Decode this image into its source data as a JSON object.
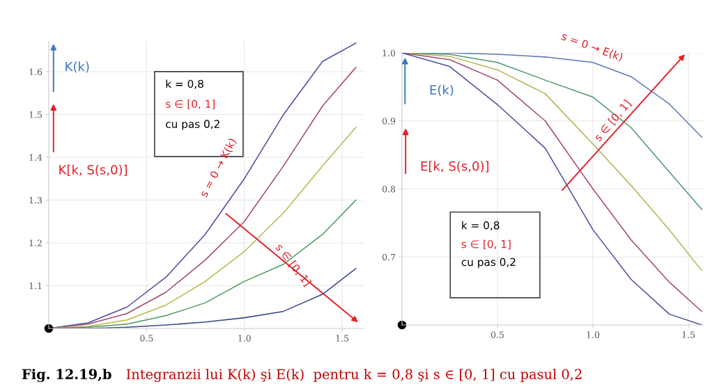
{
  "chart_data": [
    {
      "type": "line",
      "x": [
        0,
        0.2,
        0.4,
        0.6,
        0.8,
        1.0,
        1.2,
        1.4,
        1.57
      ],
      "series": [
        {
          "color": "#4a4fa0",
          "values": [
            1.0,
            1.013,
            1.05,
            1.12,
            1.22,
            1.35,
            1.5,
            1.624,
            1.667
          ]
        },
        {
          "color": "#a04a6e",
          "values": [
            1.0,
            1.01,
            1.035,
            1.085,
            1.16,
            1.25,
            1.38,
            1.52,
            1.61
          ]
        },
        {
          "color": "#b8b84a",
          "values": [
            1.0,
            1.005,
            1.02,
            1.055,
            1.11,
            1.18,
            1.27,
            1.38,
            1.47
          ]
        },
        {
          "color": "#4a9a5a",
          "values": [
            1.0,
            1.003,
            1.01,
            1.03,
            1.06,
            1.11,
            1.15,
            1.22,
            1.3
          ]
        },
        {
          "color": "#3a4a8a",
          "values": [
            1.0,
            1.0,
            1.003,
            1.008,
            1.015,
            1.025,
            1.04,
            1.08,
            1.14
          ]
        }
      ],
      "xlim": [
        0,
        1.61
      ],
      "ylim": [
        1.0,
        1.67
      ],
      "xticks": [
        {
          "value": 0.5,
          "label": "0.5"
        },
        {
          "value": 1.0,
          "label": "1.0"
        },
        {
          "value": 1.5,
          "label": "1.5"
        }
      ],
      "yticks": [
        1.1,
        1.2,
        1.3,
        1.4,
        1.5,
        1.6
      ],
      "grid": true,
      "annotations": [
        "K(k)",
        "K[k, S(s,0)]",
        "k = 0,8",
        "s ∈ [0, 1]",
        "cu pas 0,2",
        "s = 0 → K(k)",
        "s ∈ [0, 1]",
        "Fig. 12.19,b",
        "Integranzii lui K(k) şi E(k)  pentru k = 0,8 şi s ∈ [0, 1] cu pasul 0,2"
      ]
    },
    {
      "type": "line",
      "x": [
        0,
        0.25,
        0.5,
        0.75,
        1.0,
        1.2,
        1.4,
        1.57
      ],
      "series": [
        {
          "color": "#5a7ab0",
          "values": [
            1.0,
            1.0,
            0.998,
            0.994,
            0.986,
            0.965,
            0.925,
            0.876
          ]
        },
        {
          "color": "#4a9a6a",
          "values": [
            1.0,
            0.998,
            0.986,
            0.96,
            0.935,
            0.89,
            0.825,
            0.77
          ]
        },
        {
          "color": "#b8b050",
          "values": [
            1.0,
            0.995,
            0.975,
            0.94,
            0.866,
            0.805,
            0.74,
            0.68
          ]
        },
        {
          "color": "#a04a6e",
          "values": [
            1.0,
            0.99,
            0.96,
            0.9,
            0.8,
            0.725,
            0.663,
            0.62
          ]
        },
        {
          "color": "#4a4fa0",
          "values": [
            1.0,
            0.98,
            0.924,
            0.86,
            0.74,
            0.667,
            0.616,
            0.6
          ]
        }
      ],
      "xlim": [
        0,
        1.58
      ],
      "ylim": [
        0.6,
        1.0
      ],
      "xticks": [
        {
          "value": 0.5,
          "label": "0.5"
        },
        {
          "value": 1.0,
          "label": "1.0"
        },
        {
          "value": 1.5,
          "label": "1.5"
        }
      ],
      "yticks": [
        0.7,
        0.8,
        0.9,
        {
          "value": 1.0,
          "label": "1.0"
        }
      ],
      "grid": true,
      "annotations": [
        "E(k)",
        "E[k, S(s,0)]",
        "k = 0,8",
        "s ∈ [0, 1]",
        "cu pas 0,2",
        "s = 0 → E(k)",
        "s ∈ [0, 1]"
      ]
    }
  ]
}
